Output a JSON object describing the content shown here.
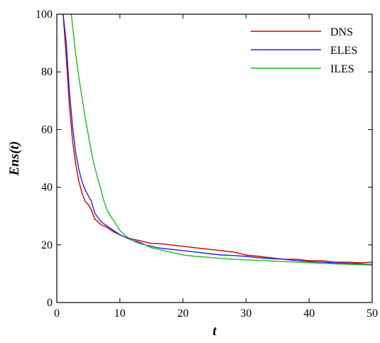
{
  "chart_data": {
    "type": "line",
    "title": "",
    "xlabel": "t",
    "ylabel": "Ens(t)",
    "xlim": [
      0,
      50
    ],
    "ylim": [
      0,
      100
    ],
    "xticks": [
      "0",
      "10",
      "20",
      "30",
      "40",
      "50"
    ],
    "yticks": [
      "0",
      "20",
      "40",
      "60",
      "80",
      "100"
    ],
    "grid": false,
    "legend_position": "top-right",
    "series": [
      {
        "name": "DNS",
        "color": "#cc0000",
        "x": [
          1,
          1.5,
          2,
          2.5,
          3,
          3.5,
          4,
          4.5,
          5,
          5.5,
          6,
          7,
          8,
          9,
          10,
          11,
          12,
          13,
          14,
          15,
          16,
          18,
          20,
          22,
          24,
          26,
          28,
          30,
          32,
          34,
          36,
          38,
          40,
          42,
          44,
          46,
          48,
          50
        ],
        "y": [
          100,
          85,
          68,
          56,
          48,
          42,
          38,
          35,
          34,
          32,
          29,
          27,
          26,
          24.5,
          23.5,
          22.5,
          22,
          21.5,
          21,
          20.5,
          20.5,
          20,
          19.5,
          19,
          18.5,
          18,
          17.5,
          16.5,
          16,
          15.5,
          15,
          15,
          14.5,
          14.5,
          14,
          14,
          13.8,
          14
        ]
      },
      {
        "name": "ELES",
        "color": "#2222dd",
        "x": [
          1,
          1.5,
          2,
          2.5,
          3,
          3.5,
          4,
          4.5,
          5,
          5.5,
          6,
          7,
          8,
          9,
          10,
          11,
          12,
          13,
          14,
          15,
          16,
          18,
          20,
          22,
          24,
          26,
          28,
          30,
          32,
          34,
          36,
          38,
          40,
          42,
          44,
          46,
          48,
          50
        ],
        "y": [
          100,
          90,
          73,
          61,
          52,
          46,
          42,
          39,
          37,
          35,
          31,
          28,
          26.5,
          25,
          23.5,
          22.5,
          21.5,
          21,
          20,
          19.5,
          19,
          18.5,
          18,
          17.5,
          17,
          16.5,
          16.3,
          16,
          15.5,
          15.2,
          15,
          14.5,
          14.2,
          14,
          13.8,
          13.6,
          13.4,
          13.2
        ]
      },
      {
        "name": "ILES",
        "color": "#22bb22",
        "x": [
          2.3,
          3,
          3.5,
          4,
          4.5,
          5,
          5.5,
          6,
          6.5,
          7,
          7.5,
          8,
          8.5,
          9,
          10,
          11,
          12,
          13,
          14,
          15,
          16,
          18,
          20,
          22,
          24,
          26,
          28,
          30,
          32,
          34,
          36,
          38,
          40,
          42,
          44,
          46,
          48,
          50
        ],
        "y": [
          100,
          86,
          78,
          71,
          64,
          58,
          52,
          47,
          43,
          39,
          35,
          32,
          30,
          28.5,
          25,
          23,
          21.5,
          20.5,
          20,
          19,
          18.5,
          17.5,
          16.5,
          16,
          15.7,
          15.3,
          15,
          14.8,
          14.6,
          14.4,
          14.2,
          14,
          13.8,
          13.6,
          13.4,
          13.3,
          13.1,
          13
        ]
      }
    ]
  }
}
